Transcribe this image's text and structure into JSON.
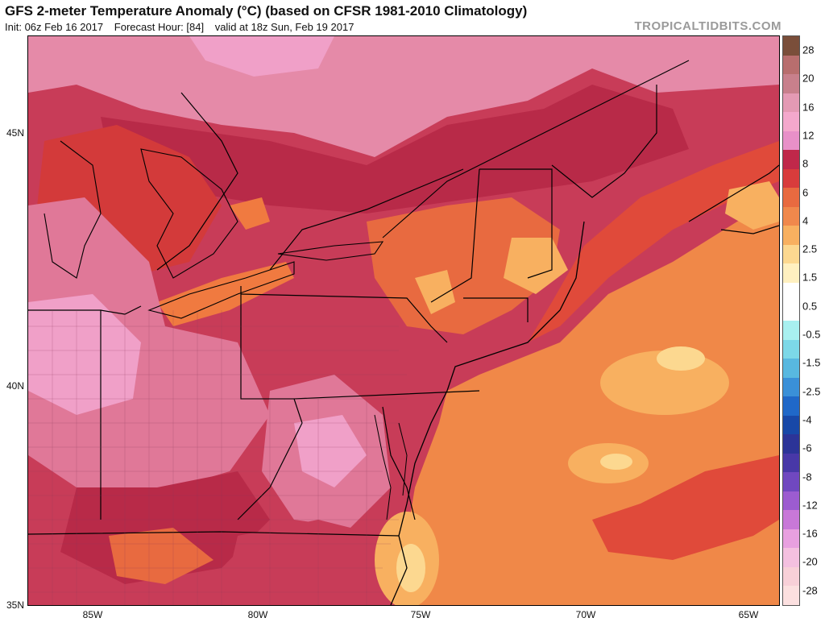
{
  "header": {
    "title": "GFS 2-meter Temperature Anomaly (°C) (based on CFSR 1981-2010 Climatology)",
    "init": "Init: 06z Feb 16 2017",
    "forecast_hour": "Forecast Hour: [84]",
    "valid": "valid at 18z Sun, Feb 19 2017",
    "brand": "TROPICALTIDBITS.COM"
  },
  "axes": {
    "lat_labels": [
      "45N",
      "40N",
      "35N"
    ],
    "lon_labels": [
      "85W",
      "80W",
      "75W",
      "70W",
      "65W"
    ]
  },
  "colorbar": {
    "labels": [
      "28",
      "20",
      "16",
      "12",
      "8",
      "6",
      "4",
      "2.5",
      "1.5",
      "0.5",
      "-0.5",
      "-1.5",
      "-2.5",
      "-4",
      "-6",
      "-8",
      "-12",
      "-16",
      "-20",
      "-28"
    ],
    "colors": [
      "#7a4e3a",
      "#b86e6e",
      "#c8808c",
      "#e49ab4",
      "#f4a8cc",
      "#e890c8",
      "#c0284a",
      "#d83c3c",
      "#e86a40",
      "#f0884c",
      "#f8b060",
      "#fcd890",
      "#fff0c0",
      "#ffffff",
      "#ffffff",
      "#a8f0f0",
      "#7cd8e8",
      "#58b8e0",
      "#3a90d8",
      "#2068c8",
      "#1848a8",
      "#2c3498",
      "#4838a8",
      "#7048c0",
      "#9c5cd0",
      "#c878d8",
      "#e8a0e0",
      "#f4c0e0",
      "#f8d0d8",
      "#fce0e0"
    ]
  },
  "map_colors": {
    "ocean_base": "#f08848",
    "ocean_warm": "#f8b060",
    "ocean_hot": "#fcd890",
    "coastal_red": "#e04a3a",
    "land_crimson": "#c83c58",
    "land_deep": "#b82a48",
    "land_pink": "#e07898",
    "land_light": "#f0a0c8",
    "north_pink": "#e58aa8",
    "lake_orange": "#f07a40"
  }
}
